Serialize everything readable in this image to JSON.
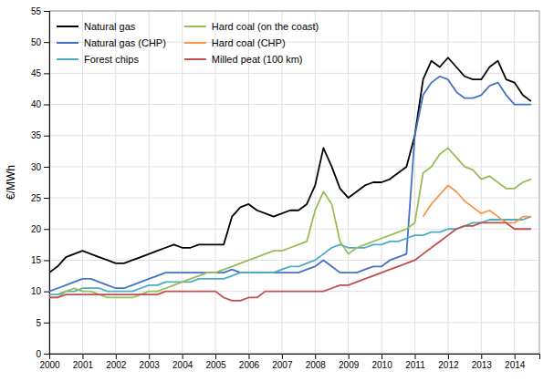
{
  "chart_data": {
    "type": "line",
    "ylabel": "€/MWh",
    "xlim": [
      2000,
      2014.75
    ],
    "ylim": [
      0,
      55
    ],
    "xticks": [
      2000,
      2001,
      2002,
      2003,
      2004,
      2005,
      2006,
      2007,
      2008,
      2009,
      2010,
      2011,
      2012,
      2013,
      2014
    ],
    "yticks": [
      0,
      5,
      10,
      15,
      20,
      25,
      30,
      35,
      40,
      45,
      50,
      55
    ],
    "grid": true,
    "legend": "upper-left",
    "x": [
      2000.0,
      2000.25,
      2000.5,
      2000.75,
      2001.0,
      2001.25,
      2001.5,
      2001.75,
      2002.0,
      2002.25,
      2002.5,
      2002.75,
      2003.0,
      2003.25,
      2003.5,
      2003.75,
      2004.0,
      2004.25,
      2004.5,
      2004.75,
      2005.0,
      2005.25,
      2005.5,
      2005.75,
      2006.0,
      2006.25,
      2006.5,
      2006.75,
      2007.0,
      2007.25,
      2007.5,
      2007.75,
      2008.0,
      2008.25,
      2008.5,
      2008.75,
      2009.0,
      2009.25,
      2009.5,
      2009.75,
      2010.0,
      2010.25,
      2010.5,
      2010.75,
      2011.0,
      2011.25,
      2011.5,
      2011.75,
      2012.0,
      2012.25,
      2012.5,
      2012.75,
      2013.0,
      2013.25,
      2013.5,
      2013.75,
      2014.0,
      2014.25,
      2014.5
    ],
    "series": [
      {
        "name": "Natural gas",
        "color": "#000000",
        "values": [
          13.0,
          14.0,
          15.5,
          16.0,
          16.5,
          16.0,
          15.5,
          15.0,
          14.5,
          14.5,
          15.0,
          15.5,
          16.0,
          16.5,
          17.0,
          17.5,
          17.0,
          17.0,
          17.5,
          17.5,
          17.5,
          17.5,
          22.0,
          23.5,
          24.0,
          23.0,
          22.5,
          22.0,
          22.5,
          23.0,
          23.0,
          24.0,
          27.0,
          33.0,
          30.0,
          26.5,
          25.0,
          26.0,
          27.0,
          27.5,
          27.5,
          28.0,
          29.0,
          30.0,
          35.0,
          44.0,
          47.0,
          46.0,
          47.5,
          46.0,
          44.5,
          44.0,
          44.0,
          46.0,
          47.0,
          44.0,
          43.5,
          41.5,
          40.5
        ]
      },
      {
        "name": "Natural gas (CHP)",
        "color": "#4472c4",
        "values": [
          10.0,
          10.5,
          11.0,
          11.5,
          12.0,
          12.0,
          11.5,
          11.0,
          10.5,
          10.5,
          11.0,
          11.5,
          12.0,
          12.5,
          13.0,
          13.0,
          13.0,
          13.0,
          13.0,
          13.0,
          13.0,
          13.0,
          13.5,
          13.0,
          13.0,
          13.0,
          13.0,
          13.0,
          13.0,
          13.0,
          13.0,
          13.5,
          14.0,
          15.0,
          14.0,
          13.0,
          13.0,
          13.0,
          13.5,
          14.0,
          14.0,
          15.0,
          15.5,
          16.0,
          35.0,
          41.5,
          43.5,
          44.5,
          44.0,
          42.0,
          41.0,
          41.0,
          41.5,
          43.0,
          43.5,
          41.5,
          40.0,
          40.0,
          40.0
        ]
      },
      {
        "name": "Forest chips",
        "color": "#4bacc6",
        "values": [
          9.5,
          9.5,
          10.0,
          10.0,
          10.5,
          10.5,
          10.5,
          10.0,
          10.0,
          10.0,
          10.0,
          10.5,
          11.0,
          11.0,
          11.5,
          11.5,
          11.5,
          11.5,
          12.0,
          12.0,
          12.0,
          12.0,
          12.5,
          13.0,
          13.0,
          13.0,
          13.0,
          13.0,
          13.5,
          14.0,
          14.0,
          14.5,
          15.0,
          16.0,
          17.0,
          17.5,
          17.0,
          17.0,
          17.0,
          17.5,
          17.5,
          18.0,
          18.0,
          18.5,
          19.0,
          19.0,
          19.5,
          19.5,
          20.0,
          20.0,
          20.5,
          21.0,
          21.0,
          21.5,
          21.5,
          21.5,
          21.5,
          21.5,
          22.0
        ]
      },
      {
        "name": "Hard coal (on the coast)",
        "color": "#9bbb59",
        "values": [
          9.0,
          9.0,
          10.0,
          10.5,
          10.0,
          10.0,
          9.5,
          9.0,
          9.0,
          9.0,
          9.0,
          9.5,
          10.0,
          10.0,
          10.5,
          11.0,
          11.5,
          12.0,
          12.5,
          13.0,
          13.0,
          13.5,
          14.0,
          14.5,
          15.0,
          15.5,
          16.0,
          16.5,
          16.5,
          17.0,
          17.5,
          18.0,
          23.0,
          26.0,
          24.0,
          18.0,
          16.0,
          17.0,
          17.5,
          18.0,
          18.5,
          19.0,
          19.5,
          20.0,
          21.0,
          29.0,
          30.0,
          32.0,
          33.0,
          31.5,
          30.0,
          29.5,
          28.0,
          28.5,
          27.5,
          26.5,
          26.5,
          27.5,
          28.0
        ]
      },
      {
        "name": "Hard coal (CHP)",
        "color": "#f79646",
        "values": [
          null,
          null,
          null,
          null,
          null,
          null,
          null,
          null,
          null,
          null,
          null,
          null,
          null,
          null,
          null,
          null,
          null,
          null,
          null,
          null,
          null,
          null,
          null,
          null,
          null,
          null,
          null,
          null,
          null,
          null,
          null,
          null,
          null,
          null,
          null,
          null,
          null,
          null,
          null,
          null,
          null,
          null,
          null,
          null,
          null,
          22.0,
          24.0,
          25.5,
          27.0,
          26.0,
          24.5,
          23.5,
          22.5,
          23.0,
          22.0,
          21.0,
          21.0,
          22.0,
          22.0
        ]
      },
      {
        "name": "Milled peat (100 km)",
        "color": "#c0504d",
        "values": [
          9.0,
          9.0,
          9.5,
          9.5,
          9.5,
          9.5,
          9.5,
          9.5,
          9.5,
          9.5,
          9.5,
          9.5,
          9.5,
          9.5,
          10.0,
          10.0,
          10.0,
          10.0,
          10.0,
          10.0,
          10.0,
          9.0,
          8.5,
          8.5,
          9.0,
          9.0,
          10.0,
          10.0,
          10.0,
          10.0,
          10.0,
          10.0,
          10.0,
          10.0,
          10.5,
          11.0,
          11.0,
          11.5,
          12.0,
          12.5,
          13.0,
          13.5,
          14.0,
          14.5,
          15.0,
          16.0,
          17.0,
          18.0,
          19.0,
          20.0,
          20.5,
          20.5,
          21.0,
          21.0,
          21.0,
          21.0,
          20.0,
          20.0,
          20.0
        ]
      }
    ]
  }
}
